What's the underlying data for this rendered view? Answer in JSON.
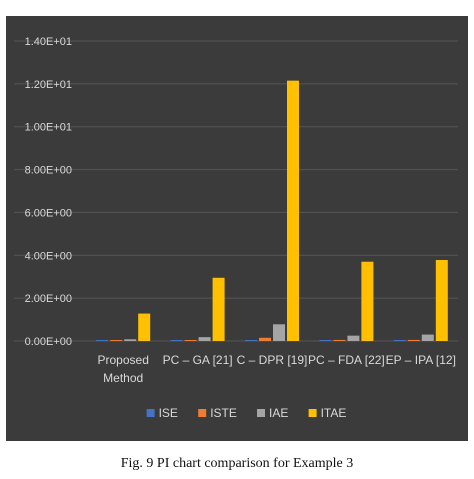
{
  "caption": "Fig. 9 PI chart comparison for Example 3",
  "colors": {
    "panel_background": "#3b3b3b",
    "gridline": "#565656",
    "axis_text": "#d9d9d9",
    "ISE": "#4472c4",
    "ISTE": "#ed7d31",
    "IAE": "#a5a5a5",
    "ITAE": "#ffc000"
  },
  "chart_data": {
    "type": "bar",
    "title": "",
    "xlabel": "",
    "ylabel": "",
    "ylim": [
      0,
      14
    ],
    "yticks": [
      0,
      2,
      4,
      6,
      8,
      10,
      12,
      14
    ],
    "ytick_labels": [
      "0.00E+00",
      "2.00E+00",
      "4.00E+00",
      "6.00E+00",
      "8.00E+00",
      "1.00E+01",
      "1.20E+01",
      "1.40E+01"
    ],
    "categories": [
      [
        "Proposed",
        "Method"
      ],
      [
        "PC – GA [21]"
      ],
      [
        "C – DPR [19]"
      ],
      [
        "PC – FDA [22]"
      ],
      [
        "EP – IPA [12]"
      ]
    ],
    "grid": true,
    "legend_position": "bottom",
    "series": [
      {
        "name": "ISE",
        "values": [
          0.02,
          0.02,
          0.03,
          0.02,
          0.02
        ]
      },
      {
        "name": "ISTE",
        "values": [
          0.03,
          0.04,
          0.15,
          0.05,
          0.05
        ]
      },
      {
        "name": "IAE",
        "values": [
          0.08,
          0.18,
          0.78,
          0.25,
          0.3
        ]
      },
      {
        "name": "ITAE",
        "values": [
          1.28,
          2.95,
          12.15,
          3.7,
          3.78
        ]
      }
    ]
  }
}
